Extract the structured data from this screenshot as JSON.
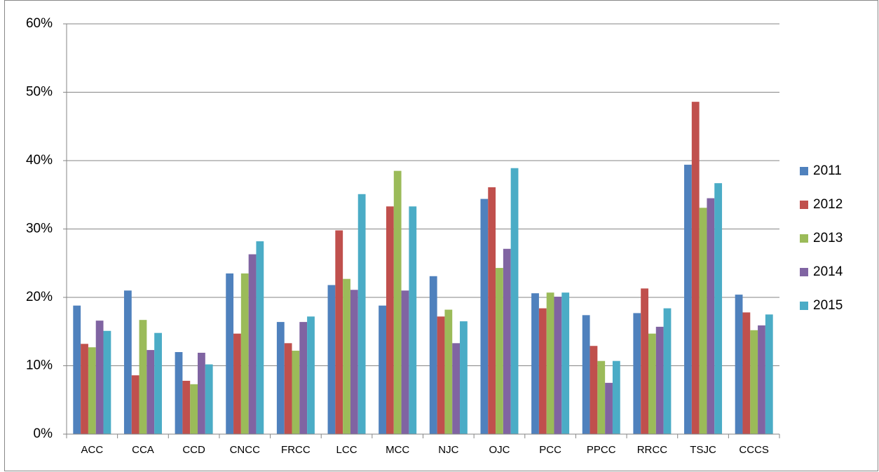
{
  "chart_data": {
    "type": "bar",
    "categories": [
      "ACC",
      "CCA",
      "CCD",
      "CNCC",
      "FRCC",
      "LCC",
      "MCC",
      "NJC",
      "OJC",
      "PCC",
      "PPCC",
      "RRCC",
      "TSJC",
      "CCCS"
    ],
    "series": [
      {
        "name": "2011",
        "color": "#4f81bd",
        "values": [
          18.8,
          21.0,
          12.0,
          23.5,
          16.4,
          21.8,
          18.8,
          23.1,
          34.4,
          20.6,
          17.4,
          17.7,
          39.4,
          20.4
        ]
      },
      {
        "name": "2012",
        "color": "#c0504d",
        "values": [
          13.2,
          8.6,
          7.8,
          14.7,
          13.3,
          29.8,
          33.3,
          17.2,
          36.1,
          18.4,
          12.9,
          21.3,
          48.6,
          17.8
        ]
      },
      {
        "name": "2013",
        "color": "#9bbb59",
        "values": [
          12.7,
          16.7,
          7.3,
          23.5,
          12.2,
          22.7,
          38.5,
          18.2,
          24.3,
          20.7,
          10.7,
          14.7,
          33.1,
          15.2
        ]
      },
      {
        "name": "2014",
        "color": "#8064a2",
        "values": [
          16.6,
          12.3,
          11.9,
          26.3,
          16.4,
          21.1,
          21.0,
          13.3,
          27.1,
          20.1,
          7.5,
          15.7,
          34.5,
          15.9
        ]
      },
      {
        "name": "2015",
        "color": "#4bacc6",
        "values": [
          15.1,
          14.8,
          10.2,
          28.2,
          17.2,
          35.1,
          33.3,
          16.5,
          38.9,
          20.7,
          10.7,
          18.4,
          36.7,
          17.5
        ]
      }
    ],
    "ylim": [
      0,
      60
    ],
    "yticks": [
      {
        "value": 0,
        "label": "0%"
      },
      {
        "value": 10,
        "label": "10%"
      },
      {
        "value": 20,
        "label": "20%"
      },
      {
        "value": 30,
        "label": "30%"
      },
      {
        "value": 40,
        "label": "40%"
      },
      {
        "value": 50,
        "label": "50%"
      },
      {
        "value": 60,
        "label": "60%"
      }
    ],
    "grid": true,
    "legend": "right"
  }
}
